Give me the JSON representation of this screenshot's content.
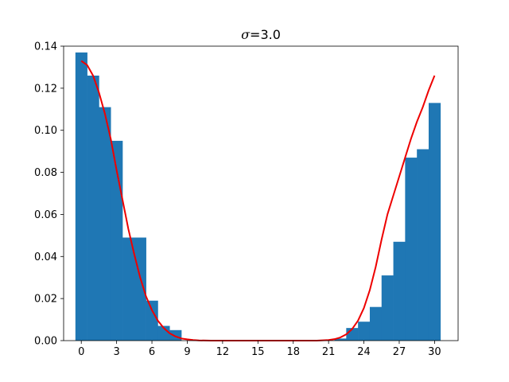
{
  "chart_data": {
    "type": "bar",
    "title_symbol": "σ",
    "title_rest": "=3.0",
    "xlabel": "",
    "ylabel": "",
    "xlim": [
      -1.5,
      32
    ],
    "ylim": [
      0,
      0.14
    ],
    "xticks": [
      0,
      3,
      6,
      9,
      12,
      15,
      18,
      21,
      24,
      27,
      30
    ],
    "yticks": [
      0.0,
      0.02,
      0.04,
      0.06,
      0.08,
      0.1,
      0.12,
      0.14
    ],
    "grid": false,
    "bar_color": "#1f77b4",
    "line_color": "#ee0000",
    "histogram": {
      "bin_width": 1,
      "bins": [
        {
          "x": 0,
          "y": 0.137
        },
        {
          "x": 1,
          "y": 0.126
        },
        {
          "x": 2,
          "y": 0.111
        },
        {
          "x": 3,
          "y": 0.095
        },
        {
          "x": 4,
          "y": 0.049
        },
        {
          "x": 5,
          "y": 0.049
        },
        {
          "x": 6,
          "y": 0.019
        },
        {
          "x": 7,
          "y": 0.007
        },
        {
          "x": 8,
          "y": 0.005
        },
        {
          "x": 9,
          "y": 0.0
        },
        {
          "x": 10,
          "y": 0.0
        },
        {
          "x": 11,
          "y": 0.0
        },
        {
          "x": 12,
          "y": 0.0
        },
        {
          "x": 13,
          "y": 0.0
        },
        {
          "x": 14,
          "y": 0.0
        },
        {
          "x": 15,
          "y": 0.0
        },
        {
          "x": 16,
          "y": 0.0
        },
        {
          "x": 17,
          "y": 0.0
        },
        {
          "x": 18,
          "y": 0.0
        },
        {
          "x": 19,
          "y": 0.0
        },
        {
          "x": 20,
          "y": 0.0
        },
        {
          "x": 21,
          "y": 0.0
        },
        {
          "x": 22,
          "y": 0.001
        },
        {
          "x": 23,
          "y": 0.006
        },
        {
          "x": 24,
          "y": 0.009
        },
        {
          "x": 25,
          "y": 0.016
        },
        {
          "x": 26,
          "y": 0.031
        },
        {
          "x": 27,
          "y": 0.047
        },
        {
          "x": 28,
          "y": 0.087
        },
        {
          "x": 29,
          "y": 0.091
        },
        {
          "x": 30,
          "y": 0.113
        }
      ]
    },
    "curve": {
      "x": [
        0,
        0.5,
        1,
        1.5,
        2,
        2.5,
        3,
        3.5,
        4,
        4.5,
        5,
        5.5,
        6,
        6.5,
        7,
        7.5,
        8,
        8.5,
        9,
        9.5,
        10,
        11,
        12,
        13,
        14,
        15,
        16,
        17,
        18,
        19,
        20,
        21,
        21.5,
        22,
        22.5,
        23,
        23.5,
        24,
        24.5,
        25,
        25.5,
        26,
        26.5,
        27,
        27.5,
        28,
        28.5,
        29,
        29.5,
        30
      ],
      "y": [
        0.133,
        0.131,
        0.126,
        0.118,
        0.108,
        0.096,
        0.081,
        0.067,
        0.053,
        0.041,
        0.03,
        0.021,
        0.0145,
        0.0095,
        0.006,
        0.0035,
        0.002,
        0.001,
        0.0006,
        0.0003,
        0.0001,
        0.0,
        0.0,
        0.0,
        0.0,
        0.0,
        0.0,
        0.0,
        0.0,
        0.0,
        0.0,
        0.0003,
        0.0007,
        0.0015,
        0.003,
        0.0055,
        0.0095,
        0.0155,
        0.024,
        0.035,
        0.048,
        0.06,
        0.069,
        0.078,
        0.087,
        0.096,
        0.104,
        0.111,
        0.119,
        0.126
      ]
    }
  }
}
